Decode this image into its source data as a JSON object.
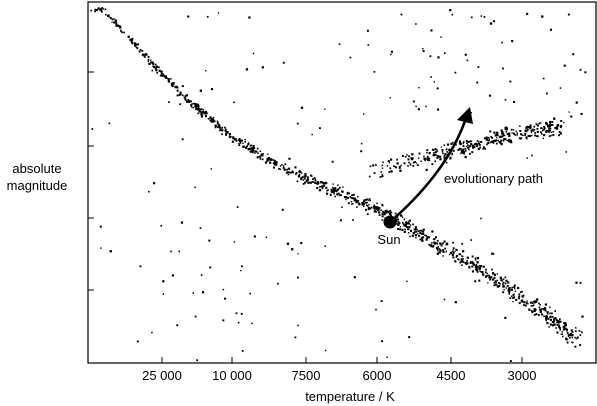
{
  "chart_data": {
    "type": "scatter",
    "title": "",
    "xlabel": "temperature / K",
    "ylabel_lines": [
      "absolute",
      "magnitude"
    ],
    "x_tick_labels": [
      "25 000",
      "10 000",
      "7500",
      "6000",
      "4500",
      "3000"
    ],
    "y_tick_count": 4,
    "y_tick_labels": [],
    "grid": false,
    "series": [
      {
        "description": "main sequence band (approximate centre line, upper-left to lower-right)",
        "x": [
          0.03,
          0.1,
          0.18,
          0.27,
          0.36,
          0.45,
          0.55,
          0.65,
          0.75,
          0.85,
          0.95
        ],
        "y": [
          0.02,
          0.13,
          0.25,
          0.36,
          0.44,
          0.5,
          0.56,
          0.64,
          0.72,
          0.81,
          0.92
        ]
      },
      {
        "description": "giant branch band (approximate centre line)",
        "x": [
          0.58,
          0.66,
          0.74,
          0.82,
          0.9
        ],
        "y": [
          0.46,
          0.43,
          0.4,
          0.37,
          0.35
        ]
      }
    ],
    "annotations": {
      "sun_label": "Sun",
      "path_label": "evolutionary path"
    },
    "sun_position": {
      "x_frac": 0.59,
      "y_frac": 0.61
    }
  }
}
